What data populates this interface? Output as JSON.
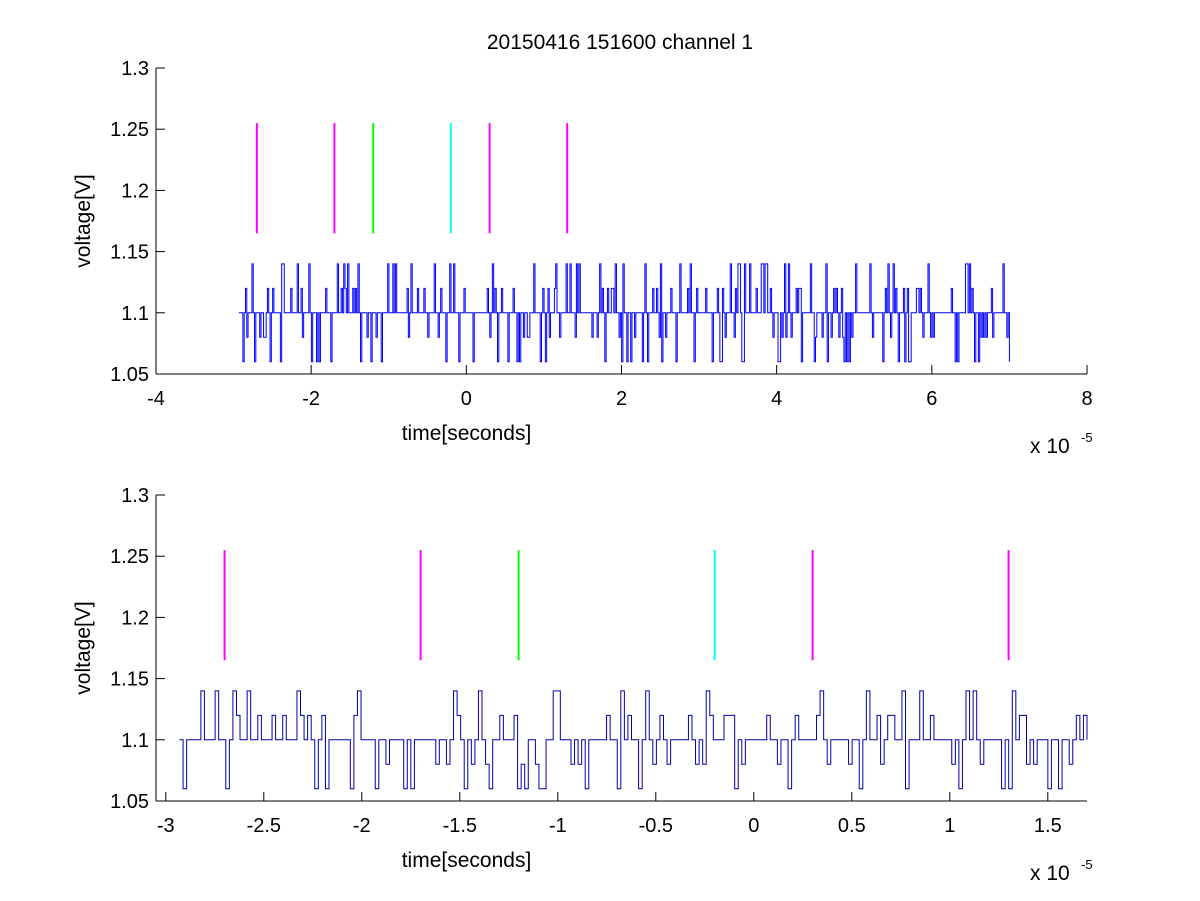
{
  "title": "20150416 151600 channel 1",
  "chart_data": [
    {
      "type": "line",
      "title": "20150416 151600 channel 1",
      "xlabel": "time[seconds]",
      "ylabel": "voltage[V]",
      "x_multiplier_label": "x 10",
      "x_multiplier_exponent": "-5",
      "xlim": [
        -4,
        8
      ],
      "ylim": [
        1.05,
        1.3
      ],
      "x_ticks": [
        "-4",
        "-2",
        "0",
        "2",
        "4",
        "6",
        "8"
      ],
      "y_ticks": [
        "1.05",
        "1.1",
        "1.15",
        "1.2",
        "1.25",
        "1.3"
      ],
      "grid": false,
      "series": [
        {
          "color": "#0000ff",
          "x_range": [
            -2.93,
            7.0
          ],
          "levels": [
            1.06,
            1.08,
            1.1,
            1.12,
            1.14
          ],
          "baseline": 1.1
        }
      ],
      "markers": [
        {
          "x": -2.7,
          "y_range": [
            1.165,
            1.255
          ],
          "color": "#ff00ff"
        },
        {
          "x": -1.7,
          "y_range": [
            1.165,
            1.255
          ],
          "color": "#ff00ff"
        },
        {
          "x": -1.2,
          "y_range": [
            1.165,
            1.255
          ],
          "color": "#00ff00"
        },
        {
          "x": -0.2,
          "y_range": [
            1.165,
            1.255
          ],
          "color": "#00ffff"
        },
        {
          "x": 0.3,
          "y_range": [
            1.165,
            1.255
          ],
          "color": "#ff00ff"
        },
        {
          "x": 1.3,
          "y_range": [
            1.165,
            1.255
          ],
          "color": "#ff00ff"
        }
      ]
    },
    {
      "type": "line",
      "title": "",
      "xlabel": "time[seconds]",
      "ylabel": "voltage[V]",
      "x_multiplier_label": "x 10",
      "x_multiplier_exponent": "-5",
      "xlim": [
        -3.05,
        1.7
      ],
      "ylim": [
        1.05,
        1.3
      ],
      "x_ticks": [
        "-3",
        "-2.5",
        "-2",
        "-1.5",
        "-1",
        "-0.5",
        "0",
        "0.5",
        "1",
        "1.5"
      ],
      "y_ticks": [
        "1.05",
        "1.1",
        "1.15",
        "1.2",
        "1.25",
        "1.3"
      ],
      "grid": false,
      "series": [
        {
          "color": "#0000aa",
          "x_range": [
            -2.93,
            1.7
          ],
          "levels": [
            1.06,
            1.08,
            1.1,
            1.12,
            1.14
          ],
          "baseline": 1.1
        }
      ],
      "markers": [
        {
          "x": -2.7,
          "y_range": [
            1.165,
            1.255
          ],
          "color": "#ff00ff"
        },
        {
          "x": -1.7,
          "y_range": [
            1.165,
            1.255
          ],
          "color": "#ff00ff"
        },
        {
          "x": -1.2,
          "y_range": [
            1.165,
            1.255
          ],
          "color": "#00ff00"
        },
        {
          "x": -0.2,
          "y_range": [
            1.165,
            1.255
          ],
          "color": "#00ffff"
        },
        {
          "x": 0.3,
          "y_range": [
            1.165,
            1.255
          ],
          "color": "#ff00ff"
        },
        {
          "x": 1.3,
          "y_range": [
            1.165,
            1.255
          ],
          "color": "#ff00ff"
        }
      ]
    }
  ]
}
